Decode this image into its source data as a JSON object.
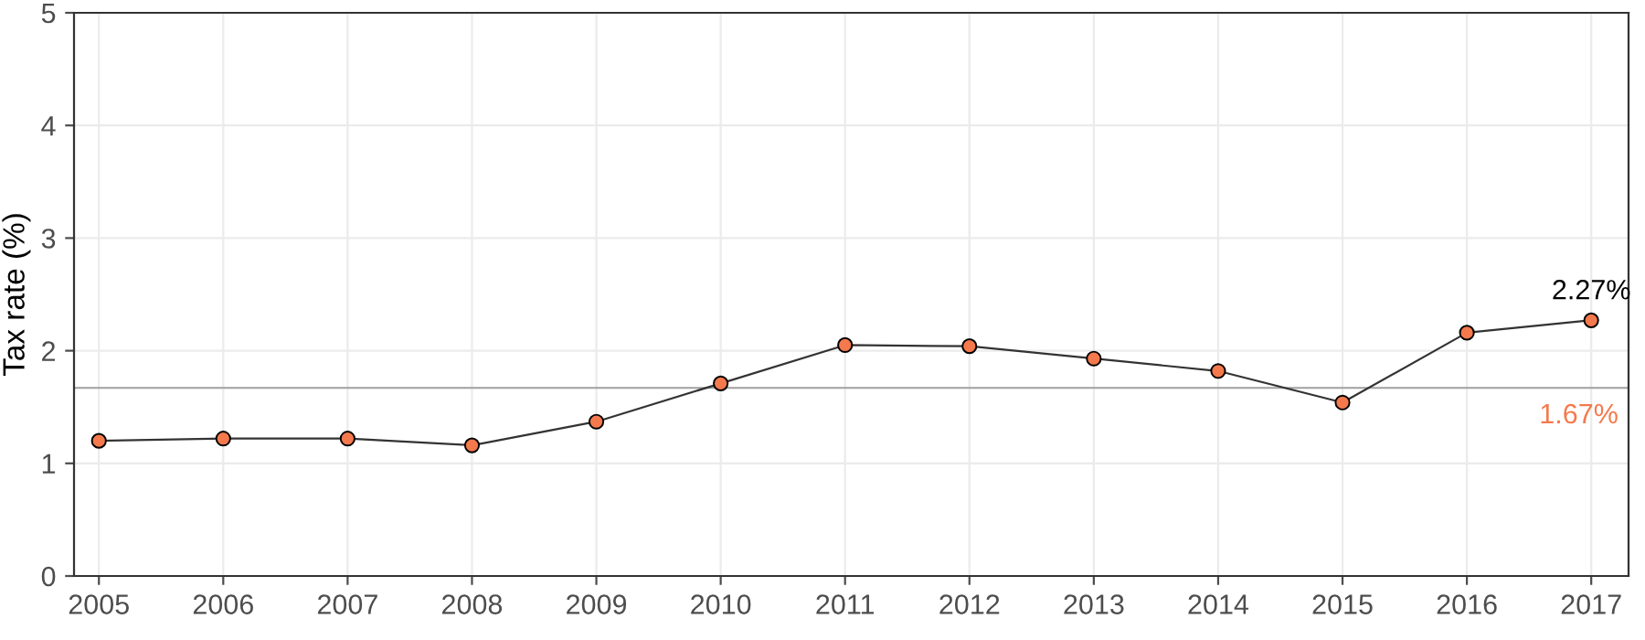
{
  "chart_data": {
    "type": "line",
    "ylabel": "Tax rate (%)",
    "x": [
      2005,
      2006,
      2007,
      2008,
      2009,
      2010,
      2011,
      2012,
      2013,
      2014,
      2015,
      2016,
      2017
    ],
    "series": [
      {
        "color": "#f4794c",
        "values": [
          1.2,
          1.22,
          1.22,
          1.16,
          1.37,
          1.71,
          2.05,
          2.04,
          1.93,
          1.82,
          1.54,
          2.16,
          2.27
        ]
      }
    ],
    "xlim": [
      2004.8,
      2017.3
    ],
    "xticks": [
      2005,
      2006,
      2007,
      2008,
      2009,
      2010,
      2011,
      2012,
      2013,
      2014,
      2015,
      2016,
      2017
    ],
    "ylim": [
      0,
      5
    ],
    "yticks": [
      0,
      1,
      2,
      3,
      4,
      5
    ],
    "ref_lines": [
      {
        "axis": "y",
        "value": 1.67,
        "label": "1.67%",
        "color": "#a0a0a0"
      }
    ],
    "annotations": [
      {
        "text": "2.27%",
        "x": 2017,
        "y": 2.27
      }
    ],
    "grid": true,
    "marker": "circle",
    "line_style": "solid"
  }
}
